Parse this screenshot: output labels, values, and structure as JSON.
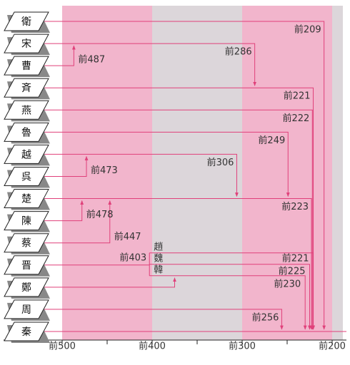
{
  "states": [
    "衛",
    "宋",
    "曹",
    "斉",
    "燕",
    "魯",
    "越",
    "呉",
    "楚",
    "陳",
    "蔡",
    "晋",
    "鄭",
    "周",
    "秦"
  ],
  "events": [
    {
      "state": "衛",
      "year": 209,
      "label": "前209",
      "to": "秦"
    },
    {
      "state": "宋",
      "year": 286,
      "label": "前286",
      "to": "斉"
    },
    {
      "state": "曹",
      "year": 487,
      "label": "前487",
      "to": "宋"
    },
    {
      "state": "斉",
      "year": 221,
      "label": "前221",
      "to": "秦"
    },
    {
      "state": "燕",
      "year": 222,
      "label": "前222",
      "to": "秦"
    },
    {
      "state": "魯",
      "year": 249,
      "label": "前249",
      "to": "楚"
    },
    {
      "state": "越",
      "year": 306,
      "label": "前306",
      "to": "楚"
    },
    {
      "state": "呉",
      "year": 473,
      "label": "前473",
      "to": "越"
    },
    {
      "state": "楚",
      "year": 223,
      "label": "前223",
      "to": "秦"
    },
    {
      "state": "陳",
      "year": 478,
      "label": "前478",
      "to": "楚"
    },
    {
      "state": "蔡",
      "year": 447,
      "label": "前447",
      "to": "楚"
    },
    {
      "state": "晋",
      "year": 403,
      "label": "前403",
      "split": [
        {
          "name": "趙",
          "year": 221,
          "label": "前221",
          "to": "秦"
        },
        {
          "name": "魏",
          "year": 225,
          "label": "前225",
          "to": "秦"
        },
        {
          "name": "韓",
          "year": 230,
          "label": "前230",
          "to": "秦"
        }
      ]
    },
    {
      "state": "鄭",
      "year": 375,
      "to": "韓"
    },
    {
      "state": "周",
      "year": 256,
      "label": "前256",
      "to": "秦"
    }
  ],
  "xlim": [
    500,
    200
  ],
  "xticks": [
    {
      "value": 500,
      "label": "前500"
    },
    {
      "value": 400,
      "label": "前400"
    },
    {
      "value": 300,
      "label": "前300"
    },
    {
      "value": 200,
      "label": "前200"
    }
  ],
  "minor_ticks": [
    450,
    350,
    250
  ]
}
